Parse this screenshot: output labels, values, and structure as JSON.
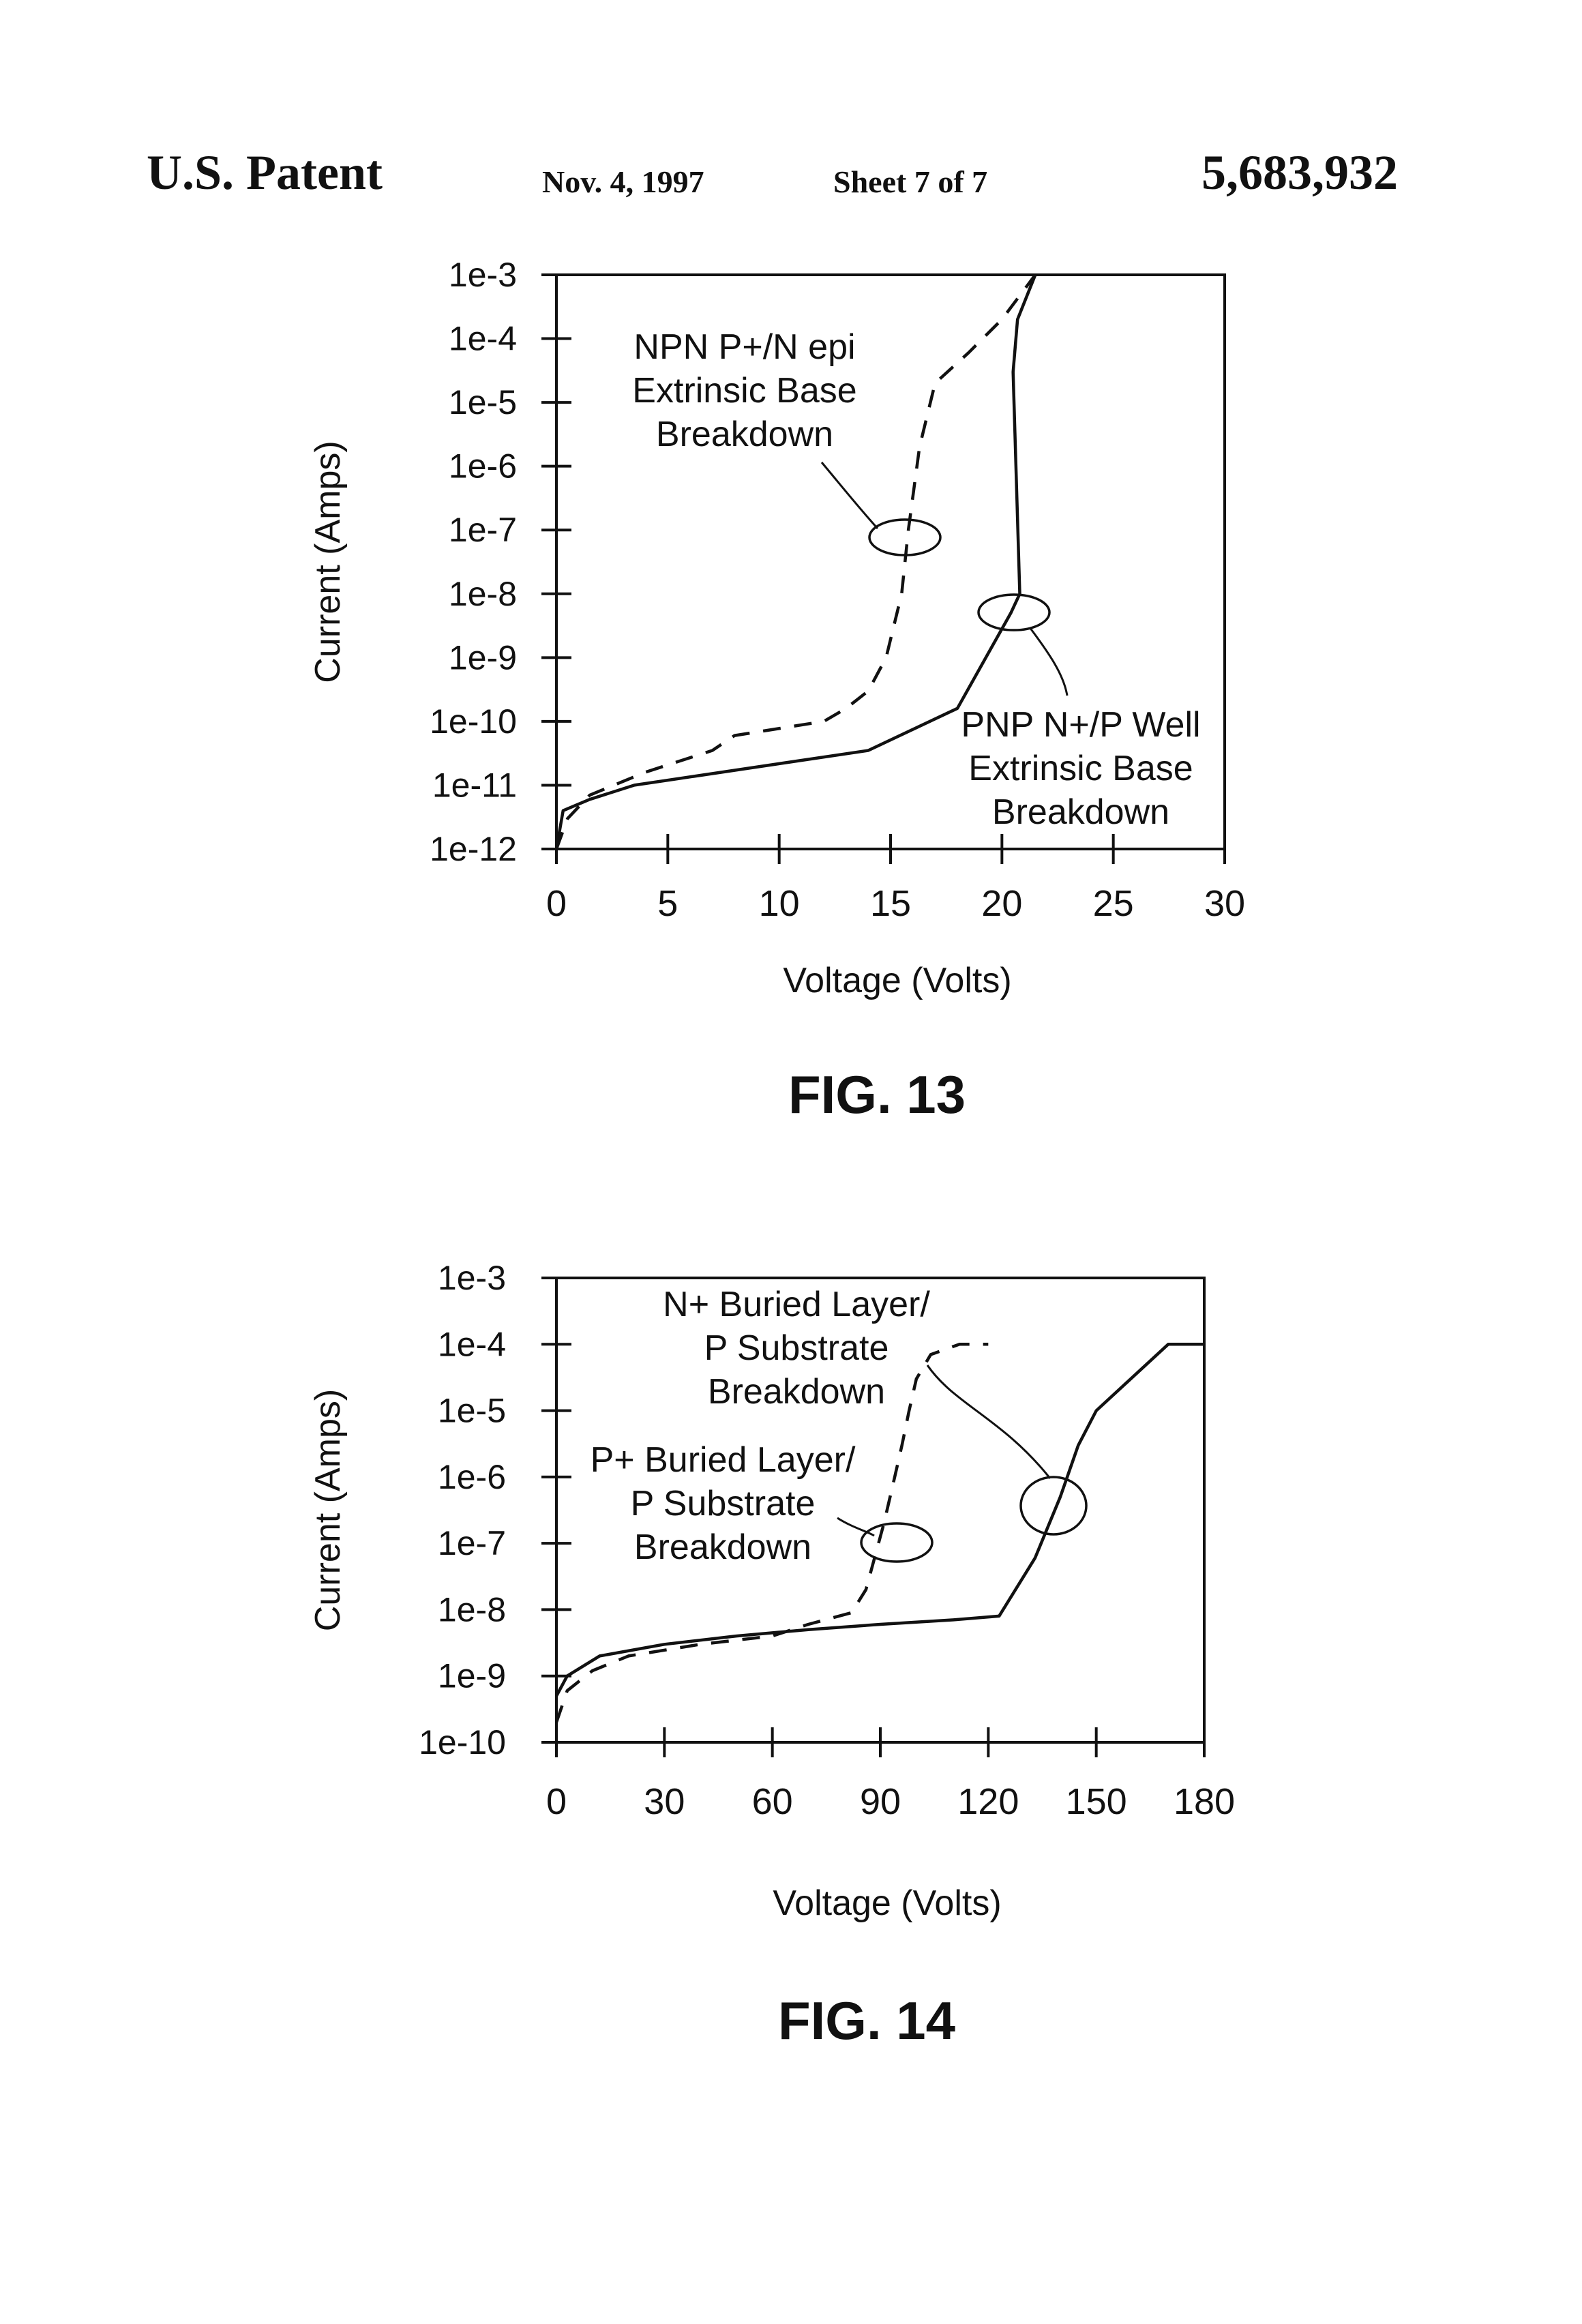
{
  "header": {
    "left": "U.S. Patent",
    "date": "Nov. 4, 1997",
    "sheet": "Sheet 7 of 7",
    "number": "5,683,932"
  },
  "chart_data": [
    {
      "type": "line",
      "figure_label": "FIG. 13",
      "xlabel": "Voltage (Volts)",
      "ylabel": "Current (Amps)",
      "xlim": [
        0,
        30
      ],
      "ylim_log10": [
        -12,
        -3
      ],
      "y_scale": "log",
      "x_ticks": [
        "0",
        "5",
        "10",
        "15",
        "20",
        "25",
        "30"
      ],
      "y_ticks": [
        "1e-3",
        "1e-4",
        "1e-5",
        "1e-6",
        "1e-7",
        "1e-8",
        "1e-9",
        "1e-10",
        "1e-11",
        "1e-12"
      ],
      "grid": false,
      "series": [
        {
          "style": "dashed",
          "x": [
            0,
            0.5,
            1.5,
            4,
            7,
            8,
            12,
            13,
            14,
            14.8,
            15.5,
            15.8,
            16.3,
            17,
            18.5,
            20,
            21.5
          ],
          "y": [
            1e-12,
            3e-12,
            7e-12,
            1.6e-11,
            3.5e-11,
            6e-11,
            1e-10,
            1.6e-10,
            3e-10,
            1e-09,
            1e-08,
            1e-07,
            2e-06,
            2e-05,
            6e-05,
            0.0002,
            0.001
          ]
        },
        {
          "style": "solid",
          "x": [
            0,
            0.3,
            1.5,
            3.5,
            14,
            18,
            20.4,
            20.8,
            20.5,
            20.7,
            21.5
          ],
          "y": [
            1e-12,
            4e-12,
            6e-12,
            1e-11,
            3.5e-11,
            1.6e-10,
            5e-09,
            1e-08,
            3e-05,
            0.0002,
            0.001
          ]
        }
      ],
      "annotations": [
        {
          "lines": [
            "NPN P+/N epi",
            "Extrinsic Base",
            "Breakdown"
          ]
        },
        {
          "lines": [
            "PNP N+/P Well",
            "Extrinsic Base",
            "Breakdown"
          ]
        }
      ]
    },
    {
      "type": "line",
      "figure_label": "FIG. 14",
      "xlabel": "Voltage (Volts)",
      "ylabel": "Current (Amps)",
      "xlim": [
        0,
        180
      ],
      "ylim_log10": [
        -10,
        -3
      ],
      "y_scale": "log",
      "x_ticks": [
        "0",
        "30",
        "60",
        "90",
        "120",
        "150",
        "180"
      ],
      "y_ticks": [
        "1e-3",
        "1e-4",
        "1e-5",
        "1e-6",
        "1e-7",
        "1e-8",
        "1e-9",
        "1e-10"
      ],
      "grid": false,
      "series": [
        {
          "style": "dashed",
          "x": [
            0,
            3,
            10,
            20,
            40,
            60,
            70,
            82,
            86,
            91,
            94,
            96,
            98,
            100,
            104,
            112,
            120
          ],
          "y": [
            2e-10,
            6e-10,
            1.2e-09,
            2e-09,
            3e-09,
            4e-09,
            6e-09,
            9e-09,
            2e-08,
            2e-07,
            1e-06,
            3e-06,
            1e-05,
            3e-05,
            7e-05,
            0.0001,
            0.0001
          ]
        },
        {
          "style": "solid",
          "x": [
            0,
            3,
            12,
            30,
            50,
            70,
            90,
            110,
            123,
            133,
            140,
            145,
            150,
            170,
            180
          ],
          "y": [
            5e-10,
            1e-09,
            2e-09,
            3e-09,
            4e-09,
            5e-09,
            6e-09,
            7e-09,
            8e-09,
            6e-08,
            5e-07,
            3e-06,
            1e-05,
            0.0001,
            0.0001
          ]
        }
      ],
      "annotations": [
        {
          "lines": [
            "N+ Buried Layer/",
            "P Substrate",
            "Breakdown"
          ]
        },
        {
          "lines": [
            "P+ Buried Layer/",
            "P Substrate",
            "Breakdown"
          ]
        }
      ]
    }
  ]
}
